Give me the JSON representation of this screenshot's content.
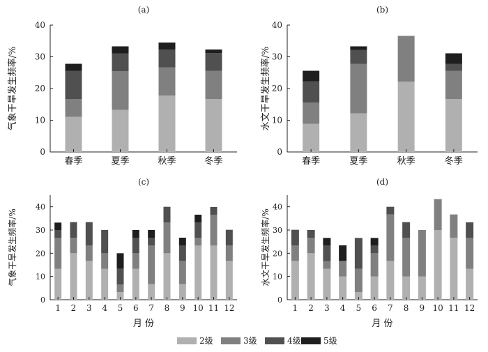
{
  "chart_data": [
    {
      "panel": "(a)",
      "type": "bar",
      "stacked": true,
      "ylabel": "气象干旱发生频率/%",
      "xlabel": "",
      "ylim": [
        0,
        40
      ],
      "yticks": [
        0,
        10,
        20,
        30,
        40
      ],
      "categories": [
        "春季",
        "夏季",
        "秋季",
        "冬季"
      ],
      "series": [
        {
          "name": "2级",
          "values": [
            11.1,
            13.3,
            17.8,
            16.7
          ]
        },
        {
          "name": "3级",
          "values": [
            5.6,
            12.2,
            8.9,
            8.9
          ]
        },
        {
          "name": "4级",
          "values": [
            8.9,
            5.6,
            5.6,
            5.6
          ]
        },
        {
          "name": "5级",
          "values": [
            2.2,
            2.2,
            2.2,
            1.1
          ]
        }
      ]
    },
    {
      "panel": "(b)",
      "type": "bar",
      "stacked": true,
      "ylabel": "水文干旱发生频率/%",
      "xlabel": "",
      "ylim": [
        0,
        40
      ],
      "yticks": [
        0,
        10,
        20,
        30,
        40
      ],
      "categories": [
        "春季",
        "夏季",
        "秋季",
        "冬季"
      ],
      "series": [
        {
          "name": "2级",
          "values": [
            8.9,
            12.2,
            22.2,
            16.7
          ]
        },
        {
          "name": "3级",
          "values": [
            6.7,
            15.6,
            14.4,
            8.9
          ]
        },
        {
          "name": "4级",
          "values": [
            6.7,
            4.4,
            0,
            2.2
          ]
        },
        {
          "name": "5级",
          "values": [
            3.3,
            1.1,
            0,
            3.3
          ]
        }
      ]
    },
    {
      "panel": "(c)",
      "type": "bar",
      "stacked": true,
      "ylabel": "气象干旱发生频率/%",
      "xlabel": "月 份",
      "ylim": [
        0,
        45
      ],
      "yticks": [
        0,
        10,
        20,
        30,
        40
      ],
      "categories": [
        "1",
        "2",
        "3",
        "4",
        "5",
        "6",
        "7",
        "8",
        "9",
        "10",
        "11",
        "12"
      ],
      "series": [
        {
          "name": "2级",
          "values": [
            13.3,
            20,
            16.7,
            13.3,
            3.3,
            13.3,
            6.7,
            20,
            6.7,
            23.3,
            23.3,
            16.7
          ]
        },
        {
          "name": "3级",
          "values": [
            13.3,
            6.7,
            6.7,
            6.7,
            3.3,
            6.7,
            16.7,
            13.3,
            10,
            3.3,
            13.3,
            6.7
          ]
        },
        {
          "name": "4级",
          "values": [
            3.3,
            6.7,
            10,
            10,
            6.7,
            6.7,
            3.3,
            6.7,
            6.7,
            6.7,
            3.3,
            6.7
          ]
        },
        {
          "name": "5级",
          "values": [
            3.3,
            0,
            0,
            0,
            6.7,
            3.3,
            3.3,
            0,
            3.3,
            3.3,
            0,
            0
          ]
        }
      ]
    },
    {
      "panel": "(d)",
      "type": "bar",
      "stacked": true,
      "ylabel": "水文干旱发生频率/%",
      "xlabel": "月 份",
      "ylim": [
        0,
        45
      ],
      "yticks": [
        0,
        10,
        20,
        30,
        40
      ],
      "categories": [
        "1",
        "2",
        "3",
        "4",
        "5",
        "6",
        "7",
        "8",
        "9",
        "10",
        "11",
        "12"
      ],
      "series": [
        {
          "name": "2级",
          "values": [
            16.7,
            20,
            13.3,
            10,
            3.3,
            10,
            16.7,
            10,
            10,
            30,
            26.7,
            13.3
          ]
        },
        {
          "name": "3级",
          "values": [
            6.7,
            6.7,
            3.3,
            6.7,
            10,
            10,
            20,
            16.7,
            20,
            13.3,
            10,
            13.3
          ]
        },
        {
          "name": "4级",
          "values": [
            6.7,
            3.3,
            6.7,
            0,
            13.3,
            3.3,
            3.3,
            6.7,
            0,
            0,
            0,
            6.7
          ]
        },
        {
          "name": "5级",
          "values": [
            0,
            0,
            3.3,
            6.7,
            0,
            3.3,
            0,
            0,
            0,
            0,
            0,
            0
          ]
        }
      ]
    }
  ],
  "legend": [
    {
      "label": "2级",
      "color": "#b0b0b0"
    },
    {
      "label": "3级",
      "color": "#808080"
    },
    {
      "label": "4级",
      "color": "#505050"
    },
    {
      "label": "5级",
      "color": "#1e1e1e"
    }
  ]
}
